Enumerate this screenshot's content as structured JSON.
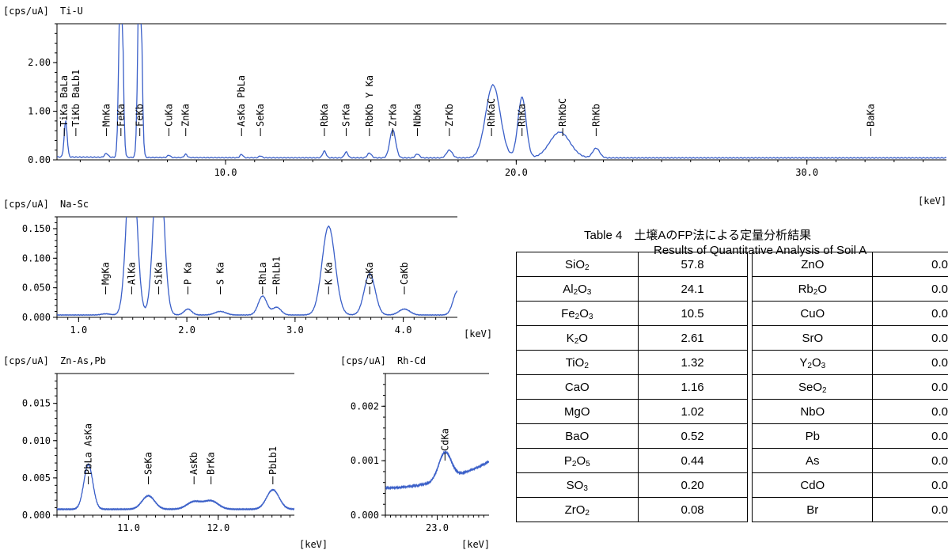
{
  "chart_data": [
    {
      "type": "line",
      "title": "Ti-U",
      "ylabel": "[cps/uA]",
      "xlabel": "[keV]",
      "xlim": [
        4.2,
        34.8
      ],
      "ylim": [
        0,
        2.8
      ],
      "xticks": [
        {
          "v": 10.0,
          "label": "10.0"
        },
        {
          "v": 20.0,
          "label": "20.0"
        },
        {
          "v": 30.0,
          "label": "30.0"
        }
      ],
      "yticks": [
        {
          "v": 0.0,
          "label": "0.00"
        },
        {
          "v": 1.0,
          "label": "1.00"
        },
        {
          "v": 2.0,
          "label": "2.00"
        }
      ],
      "baseline": 0.04,
      "peaks": [
        [
          4.5,
          0.75,
          0.05
        ],
        [
          5.9,
          0.08,
          0.06
        ],
        [
          6.4,
          5.0,
          0.06
        ],
        [
          7.05,
          5.0,
          0.06
        ],
        [
          8.05,
          0.05,
          0.05
        ],
        [
          8.63,
          0.07,
          0.05
        ],
        [
          10.55,
          0.07,
          0.05
        ],
        [
          11.2,
          0.04,
          0.05
        ],
        [
          13.4,
          0.14,
          0.06
        ],
        [
          14.15,
          0.12,
          0.06
        ],
        [
          14.95,
          0.1,
          0.07
        ],
        [
          15.75,
          0.58,
          0.1
        ],
        [
          16.6,
          0.08,
          0.07
        ],
        [
          17.7,
          0.16,
          0.1
        ],
        [
          19.2,
          1.5,
          0.25
        ],
        [
          20.2,
          1.25,
          0.14
        ],
        [
          21.5,
          0.53,
          0.35
        ],
        [
          22.75,
          0.2,
          0.12
        ]
      ],
      "annotations": [
        {
          "x": 4.45,
          "label": "TiKa BaLa"
        },
        {
          "x": 4.85,
          "label": "TiKb BaLb1"
        },
        {
          "x": 5.9,
          "label": "MnKa"
        },
        {
          "x": 6.4,
          "label": "FeKa"
        },
        {
          "x": 7.05,
          "label": "FeKb"
        },
        {
          "x": 8.05,
          "label": "CuKa"
        },
        {
          "x": 8.63,
          "label": "ZnKa"
        },
        {
          "x": 10.55,
          "label": "AsKa PbLa"
        },
        {
          "x": 11.2,
          "label": "SeKa"
        },
        {
          "x": 13.4,
          "label": "RbKa"
        },
        {
          "x": 14.15,
          "label": "SrKa"
        },
        {
          "x": 14.95,
          "label": "RbKb Y Ka"
        },
        {
          "x": 15.75,
          "label": "ZrKa"
        },
        {
          "x": 16.6,
          "label": "NbKa"
        },
        {
          "x": 17.7,
          "label": "ZrKb"
        },
        {
          "x": 19.15,
          "label": "RhKaC"
        },
        {
          "x": 20.2,
          "label": "RhKa"
        },
        {
          "x": 21.6,
          "label": "RhKbC"
        },
        {
          "x": 22.75,
          "label": "RhKb"
        },
        {
          "x": 32.2,
          "label": "BaKa"
        }
      ]
    },
    {
      "type": "line",
      "title": "Na-Sc",
      "ylabel": "[cps/uA]",
      "xlabel": "[keV]",
      "xlim": [
        0.8,
        4.5
      ],
      "ylim": [
        0,
        0.17
      ],
      "xticks": [
        {
          "v": 1.0,
          "label": "1.0"
        },
        {
          "v": 2.0,
          "label": "2.0"
        },
        {
          "v": 3.0,
          "label": "3.0"
        },
        {
          "v": 4.0,
          "label": "4.0"
        }
      ],
      "yticks": [
        {
          "v": 0.0,
          "label": "0.000"
        },
        {
          "v": 0.05,
          "label": "0.050"
        },
        {
          "v": 0.1,
          "label": "0.100"
        },
        {
          "v": 0.15,
          "label": "0.150"
        }
      ],
      "baseline": 0.004,
      "peaks": [
        [
          1.25,
          0.002,
          0.04
        ],
        [
          1.49,
          0.3,
          0.045
        ],
        [
          1.74,
          0.3,
          0.045
        ],
        [
          2.01,
          0.01,
          0.035
        ],
        [
          2.31,
          0.006,
          0.05
        ],
        [
          2.7,
          0.032,
          0.04
        ],
        [
          2.83,
          0.013,
          0.04
        ],
        [
          3.31,
          0.15,
          0.06
        ],
        [
          3.69,
          0.07,
          0.05
        ],
        [
          4.01,
          0.01,
          0.05
        ],
        [
          4.5,
          0.04,
          0.04
        ]
      ],
      "annotations": [
        {
          "x": 1.25,
          "label": "MgKa"
        },
        {
          "x": 1.49,
          "label": "AlKa"
        },
        {
          "x": 1.74,
          "label": "SiKa"
        },
        {
          "x": 2.01,
          "label": "P Ka"
        },
        {
          "x": 2.31,
          "label": "S Ka"
        },
        {
          "x": 2.7,
          "label": "RhLa"
        },
        {
          "x": 2.83,
          "label": "RhLb1"
        },
        {
          "x": 3.31,
          "label": "K Ka"
        },
        {
          "x": 3.69,
          "label": "CaKa"
        },
        {
          "x": 4.01,
          "label": "CaKb"
        }
      ]
    },
    {
      "type": "line",
      "title": "Zn-As,Pb",
      "ylabel": "[cps/uA]",
      "xlabel": "[keV]",
      "xlim": [
        10.2,
        12.85
      ],
      "ylim": [
        0,
        0.019
      ],
      "xticks": [
        {
          "v": 11.0,
          "label": "11.0"
        },
        {
          "v": 12.0,
          "label": "12.0"
        }
      ],
      "yticks": [
        {
          "v": 0.0,
          "label": "0.000"
        },
        {
          "v": 0.005,
          "label": "0.005"
        },
        {
          "v": 0.01,
          "label": "0.010"
        },
        {
          "v": 0.015,
          "label": "0.015"
        }
      ],
      "baseline": 0.0008,
      "peaks": [
        [
          10.55,
          0.006,
          0.05
        ],
        [
          11.22,
          0.0018,
          0.07
        ],
        [
          11.73,
          0.001,
          0.08
        ],
        [
          11.92,
          0.0011,
          0.08
        ],
        [
          12.61,
          0.0026,
          0.07
        ]
      ],
      "annotations": [
        {
          "x": 10.55,
          "label": "PbLa AsKa"
        },
        {
          "x": 11.22,
          "label": "SeKa"
        },
        {
          "x": 11.73,
          "label": "AsKb"
        },
        {
          "x": 11.92,
          "label": "BrKa"
        },
        {
          "x": 12.61,
          "label": "PbLb1"
        }
      ]
    },
    {
      "type": "line",
      "title": "Rh-Cd",
      "ylabel": "[cps/uA]",
      "xlabel": "[keV]",
      "xlim": [
        22.0,
        24.0
      ],
      "ylim": [
        0,
        0.0026
      ],
      "xticks": [
        {
          "v": 23.0,
          "label": "23.0"
        }
      ],
      "yticks": [
        {
          "v": 0.0,
          "label": "0.000"
        },
        {
          "v": 0.001,
          "label": "0.001"
        },
        {
          "v": 0.002,
          "label": "0.002"
        }
      ],
      "baseline": 0.0005,
      "peaks": [
        [
          23.15,
          0.0005,
          0.12
        ]
      ],
      "annotations": [
        {
          "x": 23.15,
          "label": "CdKa"
        }
      ]
    }
  ],
  "table": {
    "caption_ja": "Table 4　土壌AのFP法による定量分析結果",
    "caption_en": "Results of  Quantitative Analysis  of Soil A",
    "rows": [
      {
        "c1": [
          "SiO",
          "2",
          ""
        ],
        "v1": "57.8",
        "c2": [
          "ZnO",
          "",
          ""
        ],
        "v2": "0.0"
      },
      {
        "c1": [
          "Al",
          "2",
          "O",
          "3"
        ],
        "v1": "24.1",
        "c2": [
          "Rb",
          "2",
          "O"
        ],
        "v2": "0.0"
      },
      {
        "c1": [
          "Fe",
          "2",
          "O",
          "3"
        ],
        "v1": "10.5",
        "c2": [
          "CuO",
          "",
          ""
        ],
        "v2": "0.0"
      },
      {
        "c1": [
          "K",
          "2",
          "O"
        ],
        "v1": "2.61",
        "c2": [
          "SrO",
          "",
          ""
        ],
        "v2": "0.0"
      },
      {
        "c1": [
          "TiO",
          "2",
          ""
        ],
        "v1": "1.32",
        "c2": [
          "Y",
          "2",
          "O",
          "3"
        ],
        "v2": "0.0"
      },
      {
        "c1": [
          "CaO",
          "",
          ""
        ],
        "v1": "1.16",
        "c2": [
          "SeO",
          "2",
          ""
        ],
        "v2": "0.0"
      },
      {
        "c1": [
          "MgO",
          "",
          ""
        ],
        "v1": "1.02",
        "c2": [
          "NbO",
          "",
          ""
        ],
        "v2": "0.0"
      },
      {
        "c1": [
          "BaO",
          "",
          ""
        ],
        "v1": "0.52",
        "c2": [
          "Pb",
          "",
          ""
        ],
        "v2": "0.0"
      },
      {
        "c1": [
          "P",
          "2",
          "O",
          "5"
        ],
        "v1": "0.44",
        "c2": [
          "As",
          "",
          ""
        ],
        "v2": "0.0"
      },
      {
        "c1": [
          "SO",
          "3",
          ""
        ],
        "v1": "0.20",
        "c2": [
          "CdO",
          "",
          ""
        ],
        "v2": "0.0"
      },
      {
        "c1": [
          "ZrO",
          "2",
          ""
        ],
        "v1": "0.08",
        "c2": [
          "Br",
          "",
          ""
        ],
        "v2": "0.0"
      }
    ]
  }
}
